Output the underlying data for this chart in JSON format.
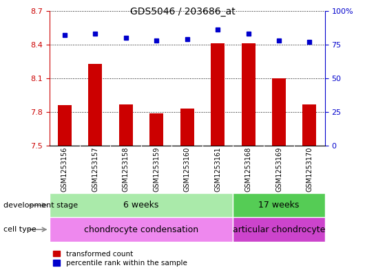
{
  "title": "GDS5046 / 203686_at",
  "samples": [
    "GSM1253156",
    "GSM1253157",
    "GSM1253158",
    "GSM1253159",
    "GSM1253160",
    "GSM1253161",
    "GSM1253168",
    "GSM1253169",
    "GSM1253170"
  ],
  "red_values": [
    7.86,
    8.23,
    7.87,
    7.79,
    7.83,
    8.41,
    8.41,
    8.1,
    7.87
  ],
  "blue_values": [
    82,
    83,
    80,
    78,
    79,
    86,
    83,
    78,
    77
  ],
  "ylim_left": [
    7.5,
    8.7
  ],
  "ylim_right": [
    0,
    100
  ],
  "yticks_left": [
    7.5,
    7.8,
    8.1,
    8.4,
    8.7
  ],
  "yticks_right": [
    0,
    25,
    50,
    75,
    100
  ],
  "ytick_labels_right": [
    "0",
    "25",
    "50",
    "75",
    "100%"
  ],
  "bar_color": "#cc0000",
  "dot_color": "#0000cc",
  "bar_width": 0.45,
  "development_stage_label": "development stage",
  "cell_type_label": "cell type",
  "group1_label": "6 weeks",
  "group2_label": "17 weeks",
  "cell1_label": "chondrocyte condensation",
  "cell2_label": "articular chondrocyte",
  "g1_count": 6,
  "g2_count": 3,
  "group1_color": "#aaeaaa",
  "group2_color": "#55cc55",
  "cell1_color": "#ee88ee",
  "cell2_color": "#cc44cc",
  "legend_red_label": "transformed count",
  "legend_blue_label": "percentile rank within the sample",
  "grid_color": "#000000",
  "tick_label_color_left": "#cc0000",
  "tick_label_color_right": "#0000cc",
  "label_area_color": "#cccccc",
  "label_area_sep_color": "#ffffff"
}
